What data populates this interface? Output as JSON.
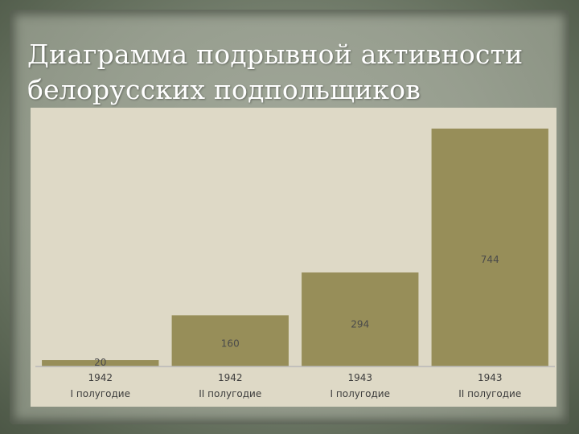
{
  "slide": {
    "title_line1": "Диаграмма подрывной активности",
    "title_line2": "белорусских подпольщиков"
  },
  "colors": {
    "bar": "#978e59",
    "chart_background": "#ded9c6",
    "title_text": "#ffffff"
  },
  "chart_data": {
    "type": "bar",
    "title": "",
    "xlabel": "",
    "ylabel": "",
    "categories": [
      [
        "1942",
        "I полугодие"
      ],
      [
        "1942",
        "II полугодие"
      ],
      [
        "1943",
        "I полугодие"
      ],
      [
        "1943",
        "II полугодие"
      ]
    ],
    "values": [
      20,
      160,
      294,
      744
    ],
    "data_labels": [
      "20",
      "160",
      "294",
      "744"
    ],
    "ylim": [
      0,
      744
    ],
    "grid": false,
    "legend": "none"
  }
}
